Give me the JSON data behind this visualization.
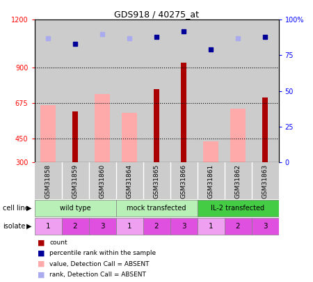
{
  "title": "GDS918 / 40275_at",
  "samples": [
    "GSM31858",
    "GSM31859",
    "GSM31860",
    "GSM31864",
    "GSM31865",
    "GSM31866",
    "GSM31861",
    "GSM31862",
    "GSM31863"
  ],
  "count_values": [
    null,
    620,
    null,
    null,
    760,
    930,
    null,
    null,
    710
  ],
  "rank_pct": [
    null,
    83,
    null,
    null,
    88,
    92,
    79,
    null,
    88
  ],
  "absent_value": [
    660,
    null,
    730,
    610,
    null,
    null,
    430,
    640,
    null
  ],
  "absent_rank_pct": [
    87,
    null,
    90,
    87,
    null,
    null,
    null,
    87,
    null
  ],
  "cell_line_groups": [
    {
      "label": "wild type",
      "start": 0,
      "end": 3,
      "color": "#b8f0b8"
    },
    {
      "label": "mock transfected",
      "start": 3,
      "end": 6,
      "color": "#b8f0b8"
    },
    {
      "label": "IL-2 transfected",
      "start": 6,
      "end": 9,
      "color": "#44cc44"
    }
  ],
  "isolate_values": [
    "1",
    "2",
    "3",
    "1",
    "2",
    "3",
    "1",
    "2",
    "3"
  ],
  "isolate_colors": [
    "#f0a0f0",
    "#e050e0",
    "#e050e0",
    "#f0a0f0",
    "#e050e0",
    "#e050e0",
    "#f0a0f0",
    "#e050e0",
    "#e050e0"
  ],
  "ymin": 300,
  "ymax": 1200,
  "yticks_left": [
    300,
    450,
    675,
    900,
    1200
  ],
  "ytick_labels_left": [
    "300",
    "450",
    "675",
    "900",
    "1200"
  ],
  "yticks_right_pct": [
    0,
    25,
    50,
    75,
    100
  ],
  "ytick_labels_right": [
    "0",
    "25",
    "50",
    "75",
    "100%"
  ],
  "hlines": [
    450,
    675,
    900
  ],
  "count_color": "#aa0000",
  "rank_color": "#000099",
  "absent_value_color": "#ffaaaa",
  "absent_rank_color": "#aaaaee",
  "sample_bg_color": "#cccccc"
}
